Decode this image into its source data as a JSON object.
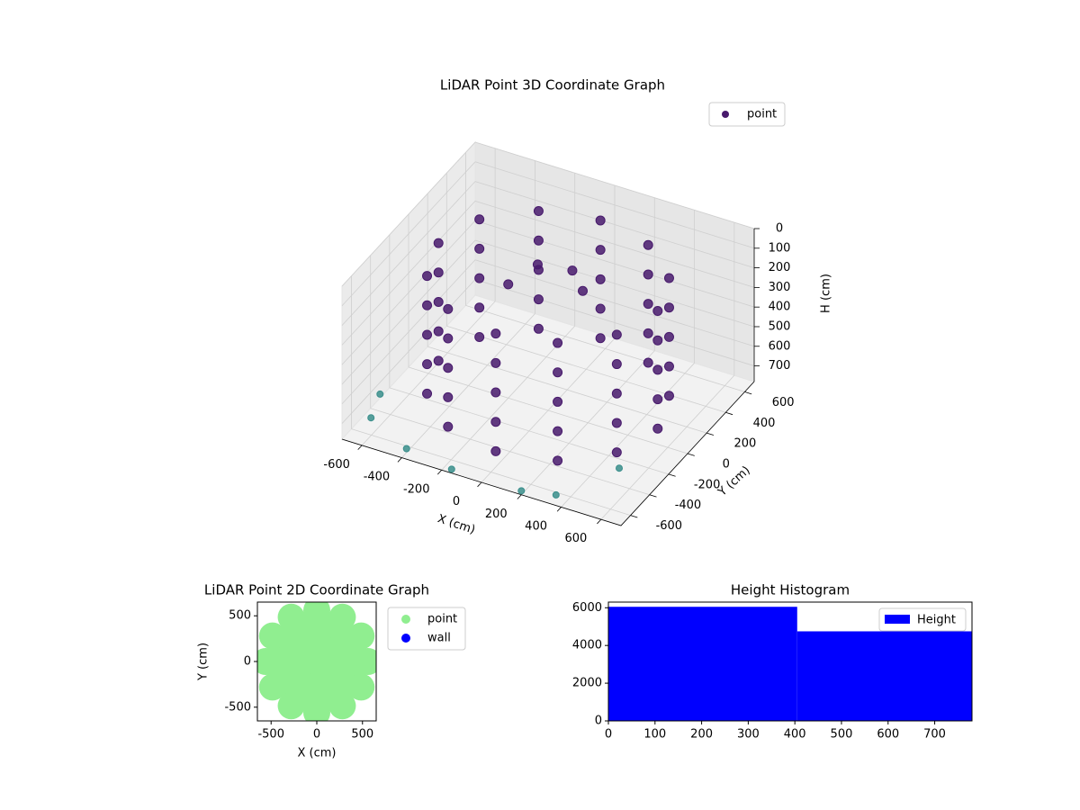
{
  "chart_data": [
    {
      "type": "scatter3d",
      "title": "LiDAR Point 3D Coordinate Graph",
      "xlabel": "X (cm)",
      "ylabel": "Y (cm)",
      "zlabel": "H (cm)",
      "xlim": [
        -700,
        700
      ],
      "ylim": [
        -700,
        700
      ],
      "zlim": [
        0,
        780
      ],
      "zinvert": true,
      "xticks": [
        -600,
        -400,
        -200,
        0,
        200,
        400,
        600
      ],
      "yticks": [
        -600,
        -400,
        -200,
        0,
        200,
        400,
        600
      ],
      "zticks": [
        0,
        100,
        200,
        300,
        400,
        500,
        600,
        700
      ],
      "grid": true,
      "legend": "upper right",
      "series": [
        {
          "name": "point",
          "color": "#481a6c",
          "x": [
            550,
            476,
            275,
            0,
            -275,
            -476,
            -550,
            -476,
            -275,
            0,
            275,
            476,
            550,
            476,
            275,
            0,
            -275,
            -476,
            -550,
            -476,
            -275,
            0,
            275,
            476,
            550,
            476,
            275,
            0,
            -275,
            -476,
            -550,
            -476,
            -275,
            0,
            275,
            476,
            550,
            476,
            275,
            0,
            -275,
            -476,
            -550,
            -476,
            -275,
            0,
            275,
            476,
            550,
            476,
            275,
            0,
            -275,
            -476,
            -550,
            -476,
            -275,
            0,
            275,
            476,
            -100,
            50,
            150,
            -200
          ],
          "y": [
            0,
            275,
            476,
            550,
            476,
            275,
            0,
            -275,
            -476,
            -550,
            -476,
            -275,
            0,
            275,
            476,
            550,
            476,
            275,
            0,
            -275,
            -476,
            -550,
            -476,
            -275,
            0,
            275,
            476,
            550,
            476,
            275,
            0,
            -275,
            -476,
            -550,
            -476,
            -275,
            0,
            275,
            476,
            550,
            476,
            275,
            0,
            -275,
            -476,
            -550,
            -476,
            -275,
            0,
            275,
            476,
            550,
            476,
            275,
            0,
            -275,
            -476,
            -550,
            -476,
            -275,
            100,
            150,
            50,
            0
          ],
          "z": [
            100,
            100,
            100,
            100,
            100,
            100,
            100,
            100,
            100,
            100,
            100,
            100,
            250,
            250,
            250,
            250,
            250,
            250,
            250,
            250,
            250,
            250,
            250,
            250,
            400,
            400,
            400,
            400,
            400,
            400,
            400,
            400,
            400,
            400,
            400,
            400,
            550,
            550,
            550,
            550,
            550,
            550,
            550,
            550,
            550,
            550,
            550,
            550,
            700,
            700,
            700,
            700,
            700,
            700,
            700,
            700,
            700,
            700,
            700,
            700,
            120,
            130,
            150,
            200
          ]
        },
        {
          "color": "#3b8f8c",
          "x": [
            -700,
            -650,
            -400,
            -150,
            200,
            350,
            500
          ],
          "y": [
            -300,
            -500,
            -650,
            -700,
            -700,
            -650,
            -300
          ],
          "z": [
            760,
            760,
            760,
            760,
            760,
            760,
            760
          ]
        }
      ]
    },
    {
      "type": "scatter",
      "title": "LiDAR Point 2D Coordinate Graph",
      "xlabel": "X (cm)",
      "ylabel": "Y (cm)",
      "xlim": [
        -650,
        650
      ],
      "ylim": [
        -650,
        650
      ],
      "xticks": [
        -500,
        0,
        500
      ],
      "yticks": [
        -500,
        0,
        500
      ],
      "legend": "outside right",
      "series": [
        {
          "name": "point",
          "color": "#90ee90",
          "x": [
            0,
            150,
            130,
            75,
            0,
            -75,
            -130,
            -150,
            -130,
            -75,
            0,
            75,
            130,
            300,
            260,
            150,
            0,
            -150,
            -260,
            -300,
            -260,
            -150,
            0,
            150,
            260,
            450,
            390,
            225,
            0,
            -225,
            -390,
            -450,
            -390,
            -225,
            0,
            225,
            390,
            560,
            485,
            280,
            0,
            -280,
            -485,
            -560,
            -485,
            -280,
            0,
            280,
            485
          ],
          "y": [
            0,
            0,
            75,
            130,
            150,
            130,
            75,
            0,
            -75,
            -130,
            -150,
            -130,
            -75,
            0,
            150,
            260,
            300,
            260,
            150,
            0,
            -150,
            -260,
            -300,
            -260,
            -150,
            0,
            225,
            390,
            450,
            390,
            225,
            0,
            -225,
            -390,
            -450,
            -390,
            -225,
            0,
            280,
            485,
            560,
            485,
            280,
            0,
            -280,
            -485,
            -560,
            -485,
            -280
          ]
        },
        {
          "name": "wall",
          "color": "#0000ff",
          "x": [],
          "y": []
        }
      ]
    },
    {
      "type": "histogram",
      "title": "Height Histogram",
      "bins": [
        0,
        405,
        780
      ],
      "values": [
        6050,
        4750
      ],
      "color": "#0000ff",
      "name": "Height",
      "xlim": [
        0,
        780
      ],
      "ylim": [
        0,
        6300
      ],
      "xticks": [
        0,
        100,
        200,
        300,
        400,
        500,
        600,
        700
      ],
      "yticks": [
        0,
        2000,
        4000,
        6000
      ],
      "legend": "upper right"
    }
  ]
}
